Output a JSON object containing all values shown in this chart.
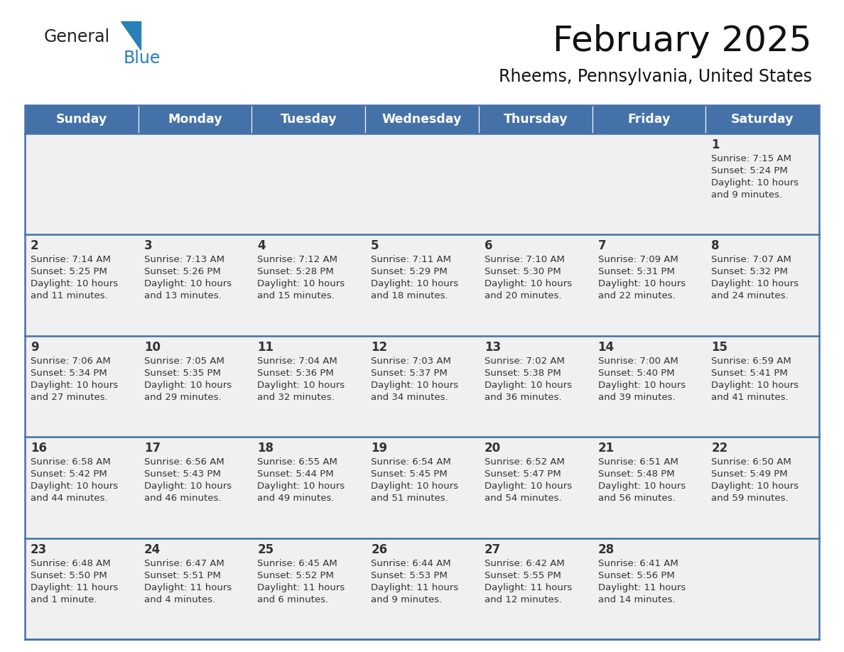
{
  "title": "February 2025",
  "subtitle": "Rheems, Pennsylvania, United States",
  "header_bg": "#4472a8",
  "header_text_color": "#ffffff",
  "cell_bg": "#f0f0f0",
  "day_number_color": "#333333",
  "cell_text_color": "#333333",
  "border_color": "#4472a8",
  "days_of_week": [
    "Sunday",
    "Monday",
    "Tuesday",
    "Wednesday",
    "Thursday",
    "Friday",
    "Saturday"
  ],
  "calendar_data": [
    [
      {
        "day": null,
        "lines": []
      },
      {
        "day": null,
        "lines": []
      },
      {
        "day": null,
        "lines": []
      },
      {
        "day": null,
        "lines": []
      },
      {
        "day": null,
        "lines": []
      },
      {
        "day": null,
        "lines": []
      },
      {
        "day": "1",
        "lines": [
          "Sunrise: 7:15 AM",
          "Sunset: 5:24 PM",
          "Daylight: 10 hours",
          "and 9 minutes."
        ]
      }
    ],
    [
      {
        "day": "2",
        "lines": [
          "Sunrise: 7:14 AM",
          "Sunset: 5:25 PM",
          "Daylight: 10 hours",
          "and 11 minutes."
        ]
      },
      {
        "day": "3",
        "lines": [
          "Sunrise: 7:13 AM",
          "Sunset: 5:26 PM",
          "Daylight: 10 hours",
          "and 13 minutes."
        ]
      },
      {
        "day": "4",
        "lines": [
          "Sunrise: 7:12 AM",
          "Sunset: 5:28 PM",
          "Daylight: 10 hours",
          "and 15 minutes."
        ]
      },
      {
        "day": "5",
        "lines": [
          "Sunrise: 7:11 AM",
          "Sunset: 5:29 PM",
          "Daylight: 10 hours",
          "and 18 minutes."
        ]
      },
      {
        "day": "6",
        "lines": [
          "Sunrise: 7:10 AM",
          "Sunset: 5:30 PM",
          "Daylight: 10 hours",
          "and 20 minutes."
        ]
      },
      {
        "day": "7",
        "lines": [
          "Sunrise: 7:09 AM",
          "Sunset: 5:31 PM",
          "Daylight: 10 hours",
          "and 22 minutes."
        ]
      },
      {
        "day": "8",
        "lines": [
          "Sunrise: 7:07 AM",
          "Sunset: 5:32 PM",
          "Daylight: 10 hours",
          "and 24 minutes."
        ]
      }
    ],
    [
      {
        "day": "9",
        "lines": [
          "Sunrise: 7:06 AM",
          "Sunset: 5:34 PM",
          "Daylight: 10 hours",
          "and 27 minutes."
        ]
      },
      {
        "day": "10",
        "lines": [
          "Sunrise: 7:05 AM",
          "Sunset: 5:35 PM",
          "Daylight: 10 hours",
          "and 29 minutes."
        ]
      },
      {
        "day": "11",
        "lines": [
          "Sunrise: 7:04 AM",
          "Sunset: 5:36 PM",
          "Daylight: 10 hours",
          "and 32 minutes."
        ]
      },
      {
        "day": "12",
        "lines": [
          "Sunrise: 7:03 AM",
          "Sunset: 5:37 PM",
          "Daylight: 10 hours",
          "and 34 minutes."
        ]
      },
      {
        "day": "13",
        "lines": [
          "Sunrise: 7:02 AM",
          "Sunset: 5:38 PM",
          "Daylight: 10 hours",
          "and 36 minutes."
        ]
      },
      {
        "day": "14",
        "lines": [
          "Sunrise: 7:00 AM",
          "Sunset: 5:40 PM",
          "Daylight: 10 hours",
          "and 39 minutes."
        ]
      },
      {
        "day": "15",
        "lines": [
          "Sunrise: 6:59 AM",
          "Sunset: 5:41 PM",
          "Daylight: 10 hours",
          "and 41 minutes."
        ]
      }
    ],
    [
      {
        "day": "16",
        "lines": [
          "Sunrise: 6:58 AM",
          "Sunset: 5:42 PM",
          "Daylight: 10 hours",
          "and 44 minutes."
        ]
      },
      {
        "day": "17",
        "lines": [
          "Sunrise: 6:56 AM",
          "Sunset: 5:43 PM",
          "Daylight: 10 hours",
          "and 46 minutes."
        ]
      },
      {
        "day": "18",
        "lines": [
          "Sunrise: 6:55 AM",
          "Sunset: 5:44 PM",
          "Daylight: 10 hours",
          "and 49 minutes."
        ]
      },
      {
        "day": "19",
        "lines": [
          "Sunrise: 6:54 AM",
          "Sunset: 5:45 PM",
          "Daylight: 10 hours",
          "and 51 minutes."
        ]
      },
      {
        "day": "20",
        "lines": [
          "Sunrise: 6:52 AM",
          "Sunset: 5:47 PM",
          "Daylight: 10 hours",
          "and 54 minutes."
        ]
      },
      {
        "day": "21",
        "lines": [
          "Sunrise: 6:51 AM",
          "Sunset: 5:48 PM",
          "Daylight: 10 hours",
          "and 56 minutes."
        ]
      },
      {
        "day": "22",
        "lines": [
          "Sunrise: 6:50 AM",
          "Sunset: 5:49 PM",
          "Daylight: 10 hours",
          "and 59 minutes."
        ]
      }
    ],
    [
      {
        "day": "23",
        "lines": [
          "Sunrise: 6:48 AM",
          "Sunset: 5:50 PM",
          "Daylight: 11 hours",
          "and 1 minute."
        ]
      },
      {
        "day": "24",
        "lines": [
          "Sunrise: 6:47 AM",
          "Sunset: 5:51 PM",
          "Daylight: 11 hours",
          "and 4 minutes."
        ]
      },
      {
        "day": "25",
        "lines": [
          "Sunrise: 6:45 AM",
          "Sunset: 5:52 PM",
          "Daylight: 11 hours",
          "and 6 minutes."
        ]
      },
      {
        "day": "26",
        "lines": [
          "Sunrise: 6:44 AM",
          "Sunset: 5:53 PM",
          "Daylight: 11 hours",
          "and 9 minutes."
        ]
      },
      {
        "day": "27",
        "lines": [
          "Sunrise: 6:42 AM",
          "Sunset: 5:55 PM",
          "Daylight: 11 hours",
          "and 12 minutes."
        ]
      },
      {
        "day": "28",
        "lines": [
          "Sunrise: 6:41 AM",
          "Sunset: 5:56 PM",
          "Daylight: 11 hours",
          "and 14 minutes."
        ]
      },
      {
        "day": null,
        "lines": []
      }
    ]
  ],
  "logo_general_color": "#222222",
  "logo_blue_color": "#2980b9",
  "fig_width": 11.88,
  "fig_height": 9.18
}
